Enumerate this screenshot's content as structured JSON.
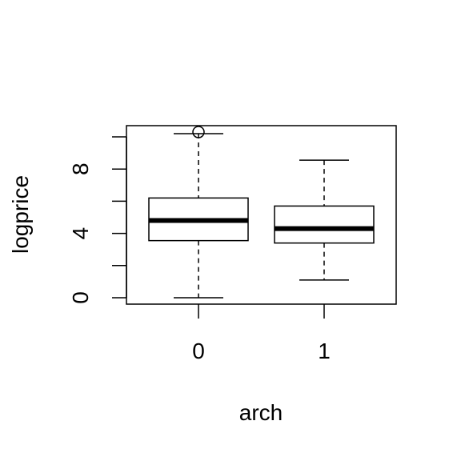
{
  "chart_data": {
    "type": "boxplot",
    "title": "",
    "xlabel": "arch",
    "ylabel": "logprice",
    "categories": [
      "0",
      "1"
    ],
    "y_ticks": [
      0,
      2,
      4,
      6,
      8,
      10
    ],
    "y_tick_labels": [
      "0",
      "",
      "4",
      "",
      "8",
      ""
    ],
    "ylim": [
      -0.4,
      10.7
    ],
    "grid": false,
    "boxes": [
      {
        "category": "0",
        "whisker_low": 0.0,
        "q1": 3.55,
        "median": 4.8,
        "q3": 6.2,
        "whisker_high": 10.2,
        "outliers": [
          10.3
        ]
      },
      {
        "category": "1",
        "whisker_low": 1.1,
        "q1": 3.4,
        "median": 4.3,
        "q3": 5.7,
        "whisker_high": 8.55,
        "outliers": []
      }
    ]
  }
}
